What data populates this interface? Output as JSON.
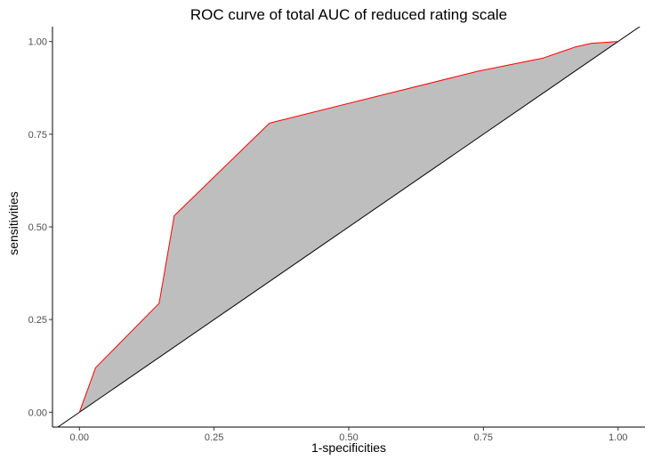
{
  "chart_data": {
    "type": "area",
    "title": "ROC curve of total AUC of reduced rating scale",
    "xlabel": "1-specificities",
    "ylabel": "sensitivities",
    "xlim": [
      -0.05,
      1.05
    ],
    "ylim": [
      -0.04,
      1.04
    ],
    "x_ticks": [
      0.0,
      0.25,
      0.5,
      0.75,
      1.0
    ],
    "x_tick_labels": [
      "0.00",
      "0.25",
      "0.50",
      "0.75",
      "1.00"
    ],
    "y_ticks": [
      0.0,
      0.25,
      0.5,
      0.75,
      1.0
    ],
    "y_tick_labels": [
      "0.00",
      "0.25",
      "0.50",
      "0.75",
      "1.00"
    ],
    "grid": false,
    "legend": "none",
    "series": [
      {
        "x": [
          0.0,
          0.03,
          0.148,
          0.176,
          0.353,
          0.74,
          0.86,
          0.92,
          0.95,
          1.0
        ],
        "y": [
          0.0,
          0.12,
          0.294,
          0.53,
          0.78,
          0.92,
          0.955,
          0.985,
          0.995,
          1.0
        ]
      }
    ],
    "reference_line": {
      "x": [
        -0.05,
        1.05
      ],
      "y": [
        -0.05,
        1.05
      ]
    },
    "colors": {
      "curve": "#ff0000",
      "fill": "#bebebe",
      "reference": "#000000",
      "axis": "#000000",
      "tick_text": "#4d4d4d"
    }
  }
}
